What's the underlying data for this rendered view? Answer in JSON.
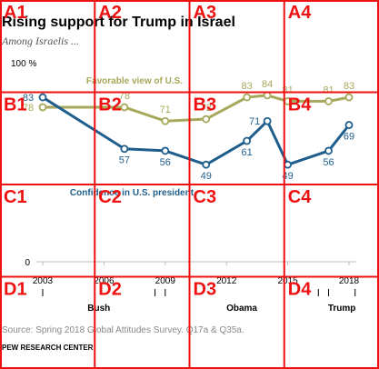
{
  "chart_data": {
    "type": "line",
    "title": "Rising support for Trump in Israel",
    "subtitle": "Among Israelis ...",
    "x": [
      2003,
      2007,
      2009,
      2011,
      2013,
      2014,
      2015,
      2017,
      2018
    ],
    "x_ticks": [
      "2003",
      "2006",
      "2009",
      "2012",
      "2015",
      "2018"
    ],
    "x_tick_values": [
      2003,
      2006,
      2009,
      2012,
      2015,
      2018
    ],
    "ylim": [
      0,
      100
    ],
    "y_ticks": [
      "0",
      "100 %"
    ],
    "grid": false,
    "series": [
      {
        "name": "Favorable view of U.S.",
        "color": "#a7a85b",
        "points": [
          {
            "x": 2003,
            "y": 78,
            "label": "78"
          },
          {
            "x": 2007,
            "y": 78,
            "label": "78"
          },
          {
            "x": 2009,
            "y": 71,
            "label": "71"
          },
          {
            "x": 2011,
            "y": 72,
            "label": "72"
          },
          {
            "x": 2013,
            "y": 83,
            "label": "83"
          },
          {
            "x": 2014,
            "y": 84,
            "label": "84"
          },
          {
            "x": 2015,
            "y": 81,
            "label": "81"
          },
          {
            "x": 2017,
            "y": 81,
            "label": "81"
          },
          {
            "x": 2018,
            "y": 83,
            "label": "83"
          }
        ]
      },
      {
        "name": "Confidence in U.S. president",
        "color": "#1f5e8c",
        "points": [
          {
            "x": 2003,
            "y": 83,
            "label": "83"
          },
          {
            "x": 2007,
            "y": 57,
            "label": "57"
          },
          {
            "x": 2009,
            "y": 56,
            "label": "56"
          },
          {
            "x": 2011,
            "y": 49,
            "label": "49"
          },
          {
            "x": 2013,
            "y": 61,
            "label": "61"
          },
          {
            "x": 2014,
            "y": 71,
            "label": "71"
          },
          {
            "x": 2015,
            "y": 49,
            "label": "49"
          },
          {
            "x": 2017,
            "y": 56,
            "label": "56"
          },
          {
            "x": 2018,
            "y": 69,
            "label": "69"
          }
        ]
      }
    ],
    "administrations": [
      {
        "name": "Bush",
        "start": 2003,
        "end": 2008.5
      },
      {
        "name": "Obama",
        "start": 2009,
        "end": 2016.5
      },
      {
        "name": "Trump",
        "start": 2017,
        "end": 2018.3
      }
    ],
    "source": "Source: Spring 2018 Global Attitudes Survey. Q17a & Q35a.",
    "credit": "PEW RESEARCH CENTER"
  },
  "overlay_grid": {
    "color": "#ee1111",
    "columns": 4,
    "rows": 4,
    "labels": [
      "A1",
      "A2",
      "A3",
      "A4",
      "B1",
      "B2",
      "B3",
      "B4",
      "C1",
      "C2",
      "C3",
      "C4",
      "D1",
      "D2",
      "D3",
      "D4"
    ]
  }
}
